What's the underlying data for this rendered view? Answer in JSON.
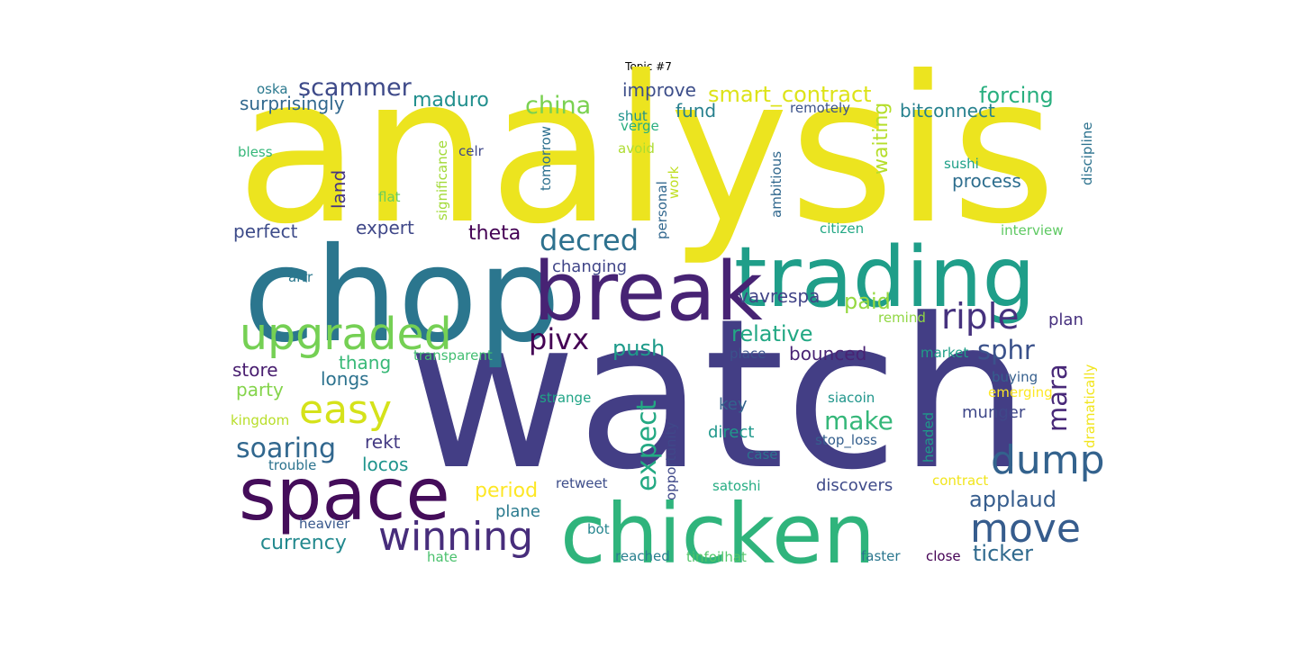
{
  "title": "Topic #7",
  "words": [
    {
      "text": "analysis",
      "color": "#ece41f"
    },
    {
      "text": "watch",
      "color": "#433e85"
    },
    {
      "text": "chop",
      "color": "#2b768e"
    },
    {
      "text": "trading",
      "color": "#1f9e89"
    },
    {
      "text": "break",
      "color": "#472374"
    },
    {
      "text": "chicken",
      "color": "#2fb47c"
    },
    {
      "text": "space",
      "color": "#440d5a"
    },
    {
      "text": "upgraded",
      "color": "#75d054"
    },
    {
      "text": "winning",
      "color": "#472d7b"
    },
    {
      "text": "easy",
      "color": "#d5e21a"
    },
    {
      "text": "dump",
      "color": "#33628d"
    },
    {
      "text": "move",
      "color": "#365c8d"
    },
    {
      "text": "riple",
      "color": "#46327e"
    },
    {
      "text": "decred",
      "color": "#2d718e"
    },
    {
      "text": "pivx",
      "color": "#440154"
    },
    {
      "text": "expect",
      "color": "#23a983"
    },
    {
      "text": "soaring",
      "color": "#31678e"
    },
    {
      "text": "make",
      "color": "#35b779"
    },
    {
      "text": "sphr",
      "color": "#3b528b"
    },
    {
      "text": "mara",
      "color": "#482878"
    },
    {
      "text": "scammer",
      "color": "#3e4a89"
    },
    {
      "text": "china",
      "color": "#7ad151"
    },
    {
      "text": "smart_contract",
      "color": "#dde318"
    },
    {
      "text": "forcing",
      "color": "#29af7f"
    },
    {
      "text": "relative",
      "color": "#22a884"
    },
    {
      "text": "applaud",
      "color": "#365d8d"
    },
    {
      "text": "push",
      "color": "#1e9b8a"
    },
    {
      "text": "paid",
      "color": "#95d840"
    },
    {
      "text": "maduro",
      "color": "#218f8d"
    },
    {
      "text": "theta",
      "color": "#440154"
    },
    {
      "text": "ticker",
      "color": "#306a8e"
    },
    {
      "text": "currency",
      "color": "#23898e"
    },
    {
      "text": "period",
      "color": "#fde725"
    },
    {
      "text": "waiting",
      "color": "#b5de2b"
    },
    {
      "text": "process",
      "color": "#2e6e8e"
    },
    {
      "text": "surprisingly",
      "color": "#31688e"
    },
    {
      "text": "improve",
      "color": "#3d4e8a"
    },
    {
      "text": "bitconnect",
      "color": "#26818e"
    },
    {
      "text": "fund",
      "color": "#27808e"
    },
    {
      "text": "expert",
      "color": "#3f4788"
    },
    {
      "text": "perfect",
      "color": "#3e4c8a"
    },
    {
      "text": "changing",
      "color": "#404588"
    },
    {
      "text": "vavrespa",
      "color": "#414487"
    },
    {
      "text": "bounced",
      "color": "#482374"
    },
    {
      "text": "store",
      "color": "#481d6f"
    },
    {
      "text": "thang",
      "color": "#38b977"
    },
    {
      "text": "longs",
      "color": "#2c728e"
    },
    {
      "text": "party",
      "color": "#84d44b"
    },
    {
      "text": "rekt",
      "color": "#443a83"
    },
    {
      "text": "locos",
      "color": "#1f948c"
    },
    {
      "text": "land",
      "color": "#453581"
    },
    {
      "text": "munger",
      "color": "#3f4889"
    },
    {
      "text": "key",
      "color": "#33638d"
    },
    {
      "text": "direct",
      "color": "#1f988b"
    },
    {
      "text": "discovers",
      "color": "#3e4a89"
    },
    {
      "text": "plane",
      "color": "#297a8e"
    },
    {
      "text": "plan",
      "color": "#46307e"
    },
    {
      "text": "significance",
      "color": "#a2da37"
    },
    {
      "text": "tomorrow",
      "color": "#2d708e"
    },
    {
      "text": "personal",
      "color": "#31678e"
    },
    {
      "text": "ambitious",
      "color": "#31688e"
    },
    {
      "text": "discipline",
      "color": "#2c728e"
    },
    {
      "text": "opportunity",
      "color": "#3f4889"
    },
    {
      "text": "headed",
      "color": "#1f998a"
    },
    {
      "text": "dramatically",
      "color": "#f1e51d"
    },
    {
      "text": "work",
      "color": "#c0df25"
    },
    {
      "text": "oska",
      "color": "#2a788e"
    },
    {
      "text": "bless",
      "color": "#35b779"
    },
    {
      "text": "celr",
      "color": "#3f4889"
    },
    {
      "text": "flat",
      "color": "#6ccd5a"
    },
    {
      "text": "shut",
      "color": "#20928c"
    },
    {
      "text": "verge",
      "color": "#29af7f"
    },
    {
      "text": "avoid",
      "color": "#addc30"
    },
    {
      "text": "remotely",
      "color": "#3b528b"
    },
    {
      "text": "sushi",
      "color": "#1fa088"
    },
    {
      "text": "citizen",
      "color": "#22a884"
    },
    {
      "text": "interview",
      "color": "#5ec962"
    },
    {
      "text": "arrr",
      "color": "#2a788e"
    },
    {
      "text": "remind",
      "color": "#90d743"
    },
    {
      "text": "transparent",
      "color": "#42be71"
    },
    {
      "text": "place",
      "color": "#3b528b"
    },
    {
      "text": "market",
      "color": "#1f9f88"
    },
    {
      "text": "buying",
      "color": "#355f8d"
    },
    {
      "text": "emerging",
      "color": "#fde725"
    },
    {
      "text": "strange",
      "color": "#20a486"
    },
    {
      "text": "siacoin",
      "color": "#1f958b"
    },
    {
      "text": "kingdom",
      "color": "#b8de29"
    },
    {
      "text": "case",
      "color": "#2c728e"
    },
    {
      "text": "stop_loss",
      "color": "#355f8d"
    },
    {
      "text": "trouble",
      "color": "#2c738e"
    },
    {
      "text": "retweet",
      "color": "#3d4d8a"
    },
    {
      "text": "satoshi",
      "color": "#25ac82"
    },
    {
      "text": "contract",
      "color": "#f1e51d"
    },
    {
      "text": "heavier",
      "color": "#38588c"
    },
    {
      "text": "bot",
      "color": "#25858e"
    },
    {
      "text": "hate",
      "color": "#4ac16d"
    },
    {
      "text": "reached",
      "color": "#277f8e"
    },
    {
      "text": "tinfoilhat",
      "color": "#52c569"
    },
    {
      "text": "faster",
      "color": "#2a768e"
    },
    {
      "text": "close",
      "color": "#440154"
    }
  ]
}
